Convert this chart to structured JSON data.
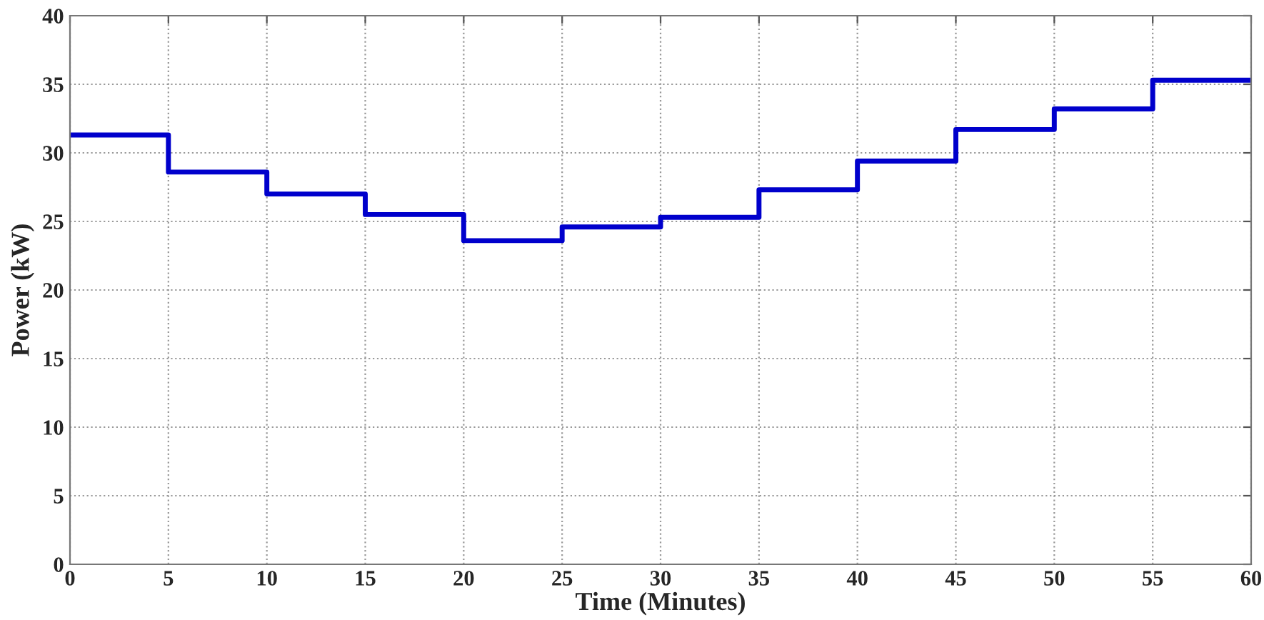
{
  "chart_data": {
    "type": "step",
    "xlabel": "Time (Minutes)",
    "ylabel": "Power (kW)",
    "x": [
      0,
      5,
      10,
      15,
      20,
      25,
      30,
      35,
      40,
      45,
      50,
      55,
      60
    ],
    "series": [
      {
        "color": "#0000cc",
        "values": [
          31.3,
          28.6,
          27.0,
          25.5,
          23.6,
          24.6,
          25.3,
          27.3,
          29.4,
          31.7,
          33.2,
          35.3,
          35.3
        ]
      }
    ],
    "xlim": [
      0,
      60
    ],
    "ylim": [
      0,
      40
    ],
    "xticks": [
      0,
      5,
      10,
      15,
      20,
      25,
      30,
      35,
      40,
      45,
      50,
      55,
      60
    ],
    "yticks": [
      0,
      5,
      10,
      15,
      20,
      25,
      30,
      35,
      40
    ],
    "grid": true,
    "line_style": "solid"
  }
}
